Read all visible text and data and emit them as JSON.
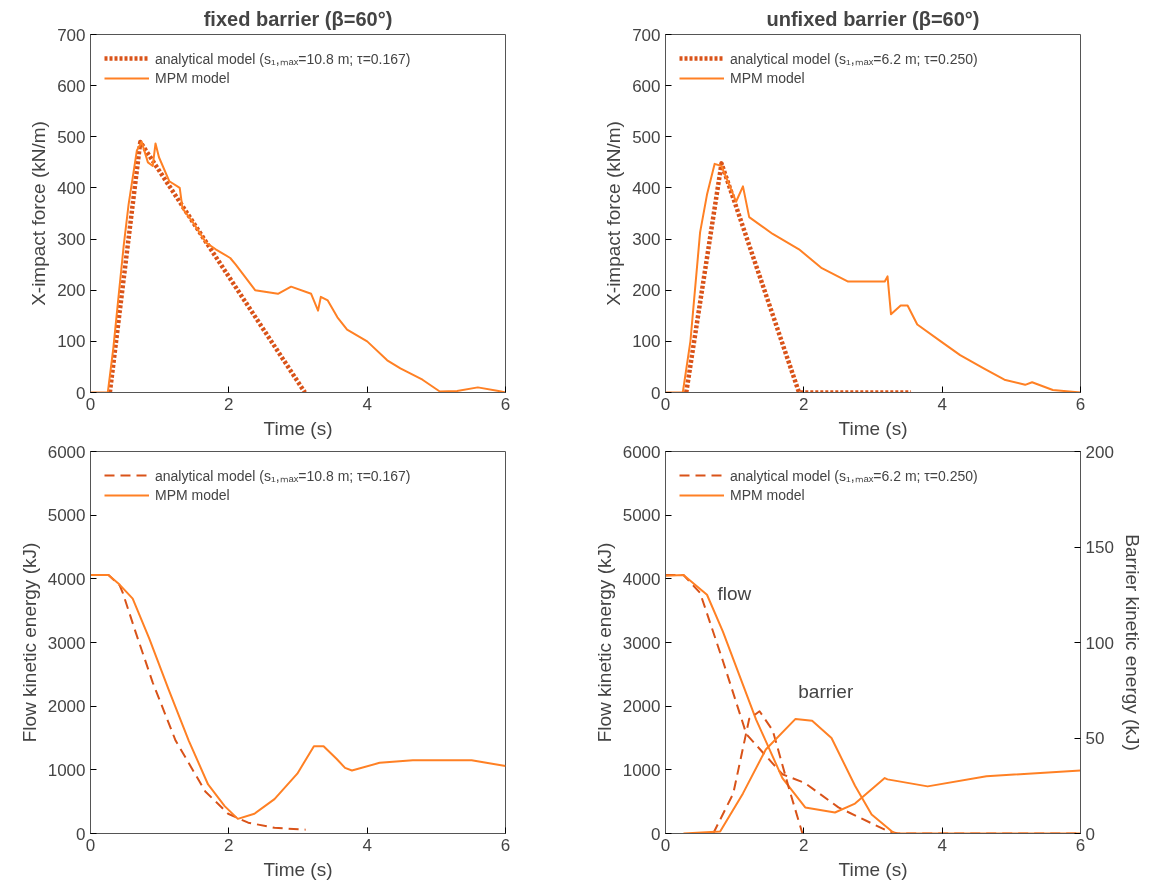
{
  "chart_data": [
    {
      "type": "line",
      "title": "fixed barrier (β=60°)",
      "xlabel": "Time (s)",
      "ylabel": "X-impact force (kN/m)",
      "xlim": [
        0,
        6
      ],
      "xticks": [
        0,
        2,
        4,
        6
      ],
      "ylim": [
        0,
        700
      ],
      "yticks": [
        0,
        100,
        200,
        300,
        400,
        500,
        600,
        700
      ],
      "grid": false,
      "legend": "top left",
      "series": [
        {
          "name": "analytical model (s₁,ₘₐₓ=10.8 m; τ=0.167)",
          "color": "#d95319",
          "line_style": "dotted",
          "x": [
            0.28,
            0.72,
            3.1
          ],
          "values": [
            0,
            490,
            0
          ]
        },
        {
          "name": "MPM model",
          "color": "#ff8024",
          "line_style": "solid",
          "x": [
            0,
            0.25,
            0.33,
            0.48,
            0.55,
            0.67,
            0.74,
            0.83,
            0.9,
            0.94,
            0.99,
            1.14,
            1.29,
            1.33,
            1.48,
            1.67,
            1.81,
            2.02,
            2.1,
            2.38,
            2.71,
            2.9,
            3.19,
            3.29,
            3.33,
            3.43,
            3.57,
            3.71,
            4.0,
            4.29,
            4.48,
            4.8,
            5.05,
            5.3,
            5.6,
            5.9,
            6.0
          ],
          "values": [
            0,
            0,
            87,
            287,
            367,
            473,
            490,
            450,
            443,
            487,
            460,
            413,
            400,
            360,
            333,
            293,
            280,
            263,
            250,
            200,
            193,
            207,
            193,
            160,
            187,
            180,
            147,
            123,
            100,
            63,
            47,
            25,
            2,
            3,
            10,
            3,
            0
          ]
        }
      ]
    },
    {
      "type": "line",
      "title": "unfixed barrier (β=60°)",
      "xlabel": "Time (s)",
      "ylabel": "X-impact force (kN/m)",
      "xlim": [
        0,
        6
      ],
      "xticks": [
        0,
        2,
        4,
        6
      ],
      "ylim": [
        0,
        700
      ],
      "yticks": [
        0,
        100,
        200,
        300,
        400,
        500,
        600,
        700
      ],
      "grid": false,
      "legend": "top left",
      "series": [
        {
          "name": "analytical model (s₁,ₘₐₓ=6.2 m; τ=0.250)",
          "color": "#d95319",
          "line_style": "dotted",
          "x": [
            0.3,
            0.81,
            1.93,
            3.55
          ],
          "values": [
            0,
            448,
            0,
            0
          ]
        },
        {
          "name": "MPM model",
          "color": "#ff8024",
          "line_style": "solid",
          "x": [
            0,
            0.25,
            0.36,
            0.5,
            0.6,
            0.71,
            0.81,
            0.9,
            1.02,
            1.12,
            1.21,
            1.55,
            1.93,
            2.26,
            2.64,
            3.17,
            3.21,
            3.26,
            3.4,
            3.5,
            3.64,
            3.98,
            4.26,
            4.6,
            4.9,
            5.2,
            5.3,
            5.6,
            6.0
          ],
          "values": [
            0,
            0,
            100,
            313,
            387,
            447,
            443,
            413,
            373,
            403,
            343,
            310,
            280,
            243,
            217,
            217,
            227,
            153,
            170,
            170,
            133,
            100,
            73,
            47,
            25,
            15,
            20,
            5,
            0
          ]
        }
      ]
    },
    {
      "type": "line",
      "xlabel": "Time (s)",
      "ylabel": "Flow kinetic energy (kJ)",
      "xlim": [
        0,
        6
      ],
      "xticks": [
        0,
        2,
        4,
        6
      ],
      "ylim": [
        0,
        6000
      ],
      "yticks": [
        0,
        1000,
        2000,
        3000,
        4000,
        5000,
        6000
      ],
      "grid": false,
      "legend": "top left",
      "series": [
        {
          "name": "analytical model (s₁,ₘₐₓ=10.8 m; τ=0.167)",
          "color": "#d95319",
          "line_style": "dashed",
          "x": [
            0,
            0.26,
            0.42,
            0.47,
            0.65,
            0.9,
            1.23,
            1.66,
            1.99,
            2.28,
            2.66,
            3.11
          ],
          "values": [
            4060,
            4060,
            3900,
            3770,
            3170,
            2370,
            1460,
            660,
            310,
            170,
            90,
            60
          ]
        },
        {
          "name": "MPM model",
          "color": "#ff8024",
          "line_style": "solid",
          "x": [
            0,
            0.26,
            0.42,
            0.61,
            0.85,
            1.13,
            1.42,
            1.7,
            1.94,
            2.13,
            2.37,
            2.66,
            2.99,
            3.23,
            3.37,
            3.56,
            3.68,
            3.78,
            4.18,
            4.66,
            5.51,
            6.0
          ],
          "values": [
            4060,
            4060,
            3910,
            3690,
            3060,
            2260,
            1460,
            770,
            430,
            230,
            310,
            540,
            940,
            1370,
            1370,
            1170,
            1030,
            990,
            1110,
            1150,
            1150,
            1060
          ]
        }
      ]
    },
    {
      "type": "line",
      "xlabel": "Time (s)",
      "ylabel": "Flow kinetic energy (kJ)",
      "y2label": "Barrier kinetic energy (kJ)",
      "xlim": [
        0,
        6
      ],
      "xticks": [
        0,
        2,
        4,
        6
      ],
      "ylim": [
        0,
        6000
      ],
      "yticks": [
        0,
        1000,
        2000,
        3000,
        4000,
        5000,
        6000
      ],
      "y2lim": [
        0,
        200
      ],
      "y2ticks": [
        0,
        50,
        100,
        150,
        200
      ],
      "grid": false,
      "legend": "top left",
      "annotations": [
        "flow",
        "barrier"
      ],
      "series": [
        {
          "name": "analytical model (s₁,ₘₐₓ=6.2 m; τ=0.250)",
          "color": "#d95319",
          "line_style": "dashed",
          "x": [
            0,
            0.26,
            0.5,
            0.83,
            1.17,
            1.69,
            2.02,
            2.5,
            3.21,
            3.36,
            6.0
          ],
          "values": [
            4060,
            4060,
            3780,
            2710,
            1560,
            930,
            790,
            410,
            40,
            0,
            0
          ]
        },
        {
          "name": "MPM model",
          "color": "#ff8024",
          "line_style": "solid",
          "x": [
            0,
            0.26,
            0.6,
            0.83,
            1.31,
            1.69,
            2.02,
            2.45,
            2.74,
            3.17,
            3.21,
            3.79,
            4.64,
            6.0
          ],
          "values": [
            4050,
            4060,
            3750,
            3170,
            1790,
            870,
            410,
            330,
            470,
            870,
            850,
            740,
            900,
            990
          ]
        },
        {
          "color": "#d95319",
          "line_style": "dashed",
          "axis": "y2",
          "x": [
            0.69,
            0.98,
            1.21,
            1.36,
            1.55,
            1.79,
            1.98
          ],
          "values": [
            0,
            21,
            60,
            64,
            54,
            23,
            0
          ]
        },
        {
          "color": "#ff8024",
          "line_style": "solid",
          "axis": "y2",
          "x": [
            0.26,
            0.79,
            1.12,
            1.45,
            1.88,
            2.12,
            2.4,
            2.74,
            2.98,
            3.31,
            6.0
          ],
          "values": [
            0,
            1,
            21,
            44,
            60,
            59,
            50,
            25,
            10,
            0,
            0
          ]
        }
      ]
    }
  ]
}
